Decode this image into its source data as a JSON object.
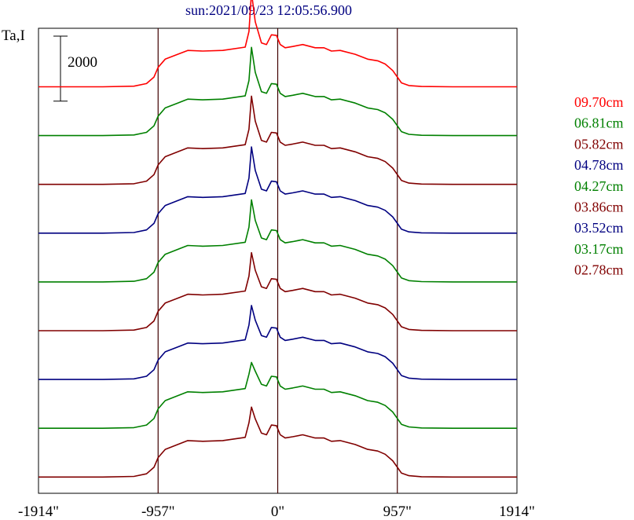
{
  "chart_data": {
    "type": "line",
    "title": "sun:2021/09/23 12:05:56.900",
    "ylabel": "Ta,I",
    "scale_bar_label": "2000",
    "scale_bar_value": 2000,
    "x_tick_labels": [
      "-1914\"",
      "-957\"",
      "0\"",
      "957\"",
      "1914\""
    ],
    "x_ticks": [
      -1914,
      -957,
      0,
      957,
      1914
    ],
    "xlim": [
      -1914,
      1914
    ],
    "ylim": [
      -500,
      13800
    ],
    "vertical_lines": [
      -957,
      0,
      957
    ],
    "grid": false,
    "legend_position": "right",
    "colors": {
      "red": "#ff0000",
      "green": "#008000",
      "maroon": "#800000",
      "navy": "#000080",
      "frame": "#000000"
    },
    "profile": {
      "x": [
        -1914,
        -1400,
        -1150,
        -1050,
        -990,
        -957,
        -900,
        -800,
        -720,
        -600,
        -440,
        -260,
        -230,
        -210,
        -180,
        -130,
        -90,
        -50,
        -10,
        20,
        60,
        120,
        200,
        300,
        370,
        430,
        500,
        620,
        720,
        800,
        860,
        920,
        957,
        990,
        1050,
        1150,
        1400,
        1914
      ],
      "y": [
        0,
        0,
        20,
        100,
        300,
        600,
        850,
        1000,
        1120,
        1100,
        1120,
        1220,
        1700,
        2900,
        2000,
        1350,
        1300,
        1600,
        1580,
        1300,
        1200,
        1240,
        1300,
        1200,
        1200,
        1100,
        1120,
        1000,
        850,
        800,
        700,
        500,
        300,
        120,
        40,
        10,
        0,
        0
      ]
    },
    "series": [
      {
        "name": "09.70cm",
        "color": "#ff0000",
        "offset": 12000,
        "peak_scale": 1.0
      },
      {
        "name": "06.81cm",
        "color": "#008000",
        "offset": 10500,
        "peak_scale": 0.85
      },
      {
        "name": "05.82cm",
        "color": "#800000",
        "offset": 9000,
        "peak_scale": 0.85
      },
      {
        "name": "04.78cm",
        "color": "#000080",
        "offset": 7500,
        "peak_scale": 0.8
      },
      {
        "name": "04.27cm",
        "color": "#008000",
        "offset": 6000,
        "peak_scale": 0.7
      },
      {
        "name": "03.86cm",
        "color": "#800000",
        "offset": 4500,
        "peak_scale": 0.6
      },
      {
        "name": "03.52cm",
        "color": "#000080",
        "offset": 3000,
        "peak_scale": 0.5
      },
      {
        "name": "03.17cm",
        "color": "#008000",
        "offset": 1500,
        "peak_scale": 0.3
      },
      {
        "name": "02.78cm",
        "color": "#800000",
        "offset": 0,
        "peak_scale": 0.4
      }
    ]
  }
}
